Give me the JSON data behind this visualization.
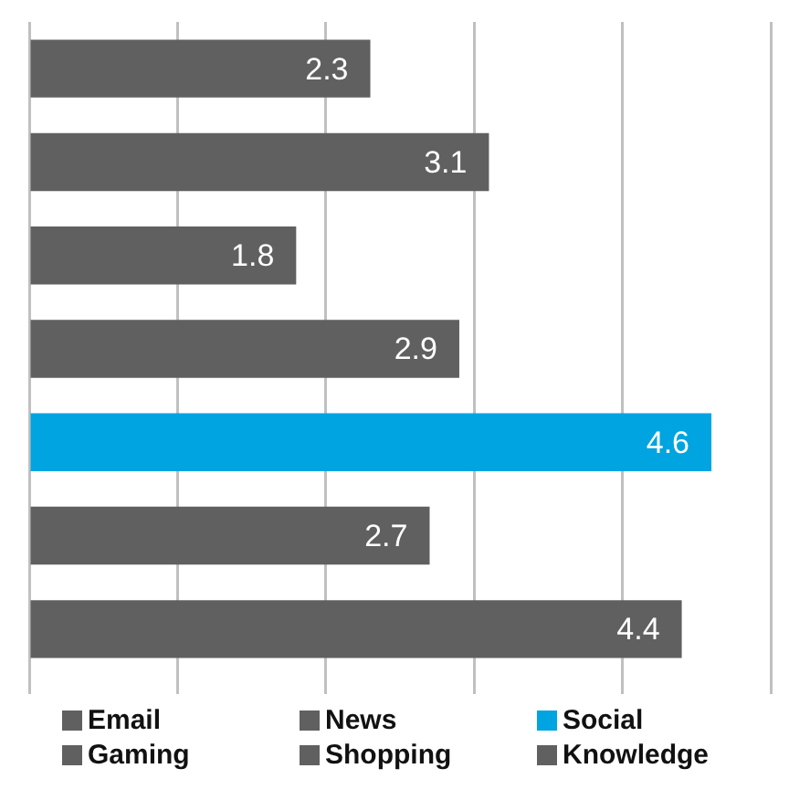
{
  "chart_data": {
    "type": "bar",
    "orientation": "horizontal",
    "categories": [
      null,
      null,
      null,
      null,
      null,
      null,
      null
    ],
    "series": [
      {
        "name": "Email",
        "color": "#606060",
        "values": [
          null,
          null,
          null,
          null,
          null,
          null,
          4.4
        ]
      },
      {
        "name": "News",
        "color": "#606060",
        "values": [
          null,
          null,
          null,
          null,
          null,
          2.7,
          null
        ]
      },
      {
        "name": "Social",
        "color": "#00a4e0",
        "values": [
          null,
          null,
          null,
          null,
          4.6,
          null,
          null
        ]
      },
      {
        "name": "Gaming",
        "color": "#606060",
        "values": [
          null,
          null,
          null,
          2.9,
          null,
          null,
          null
        ]
      },
      {
        "name": "Shopping",
        "color": "#606060",
        "values": [
          null,
          null,
          1.8,
          null,
          null,
          null,
          null
        ]
      },
      {
        "name": "Knowledge",
        "color": "#606060",
        "values": [
          null,
          3.1,
          null,
          null,
          null,
          null,
          null
        ]
      },
      {
        "color": "#606060",
        "values": [
          2.3,
          null,
          null,
          null,
          null,
          null,
          null
        ]
      }
    ],
    "xlim": [
      0,
      5
    ],
    "xticks": [
      0,
      1,
      2,
      3,
      4,
      5
    ],
    "grid": "x",
    "tick_labels": false,
    "data_labels": true,
    "legend": "bottom",
    "stacked": true
  }
}
